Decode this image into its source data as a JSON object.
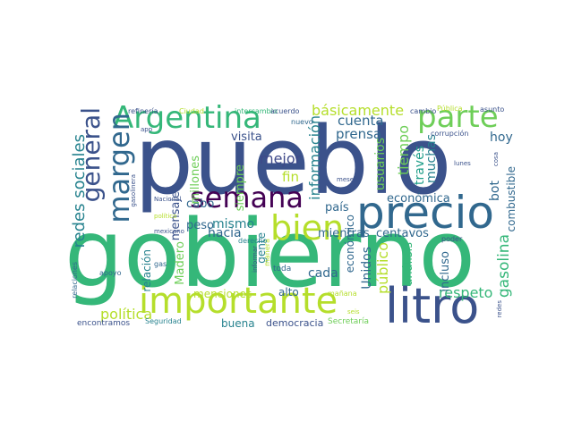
{
  "cloud": {
    "words": [
      {
        "text": "pueblo",
        "color": "#3b528b"
      },
      {
        "text": "gobierno",
        "color": "#35b779"
      },
      {
        "text": "precio",
        "color": "#31688e"
      },
      {
        "text": "litro",
        "color": "#3b528b"
      },
      {
        "text": "importante",
        "color": "#b5de2b"
      },
      {
        "text": "Argentina",
        "color": "#35b779"
      },
      {
        "text": "parte",
        "color": "#6ece58"
      },
      {
        "text": "semana",
        "color": "#440154"
      },
      {
        "text": "bien",
        "color": "#b5de2b"
      },
      {
        "text": "margen",
        "color": "#31688e"
      },
      {
        "text": "general",
        "color": "#3b528b"
      },
      {
        "text": "redes sociales",
        "color": "#26828e"
      },
      {
        "text": "política",
        "color": "#b5de2b"
      },
      {
        "text": "información",
        "color": "#26828e"
      },
      {
        "text": "básicamente",
        "color": "#b5de2b"
      },
      {
        "text": "cuenta",
        "color": "#31688e"
      },
      {
        "text": "prensa",
        "color": "#31688e"
      },
      {
        "text": "mientras",
        "color": "#31688e"
      },
      {
        "text": "centavos",
        "color": "#31688e"
      },
      {
        "text": "gasolina",
        "color": "#35b779"
      },
      {
        "text": "respeto",
        "color": "#35b779"
      },
      {
        "text": "mejor",
        "color": "#3e4989"
      },
      {
        "text": "visita",
        "color": "#3b528b"
      },
      {
        "text": "cabo",
        "color": "#31688e"
      },
      {
        "text": "peso",
        "color": "#31688e"
      },
      {
        "text": "hacia",
        "color": "#31688e"
      },
      {
        "text": "gente",
        "color": "#26828e"
      },
      {
        "text": "Maderо",
        "color": "#6ece58"
      },
      {
        "text": "alto",
        "color": "#31688e"
      },
      {
        "text": "cada",
        "color": "#31688e"
      },
      {
        "text": "Unidos",
        "color": "#31688e"
      },
      {
        "text": "público",
        "color": "#b5de2b"
      },
      {
        "text": "análisis",
        "color": "#35b779"
      },
      {
        "text": "incluso",
        "color": "#31688e"
      },
      {
        "text": "país",
        "color": "#31688e"
      },
      {
        "text": "económico",
        "color": "#31688e"
      },
      {
        "text": "económica",
        "color": "#31688e"
      },
      {
        "text": "tiempo",
        "color": "#6ece58"
      },
      {
        "text": "usuarios",
        "color": "#6ece58"
      },
      {
        "text": "través",
        "color": "#1f9e89"
      },
      {
        "text": "muchas",
        "color": "#26828e"
      },
      {
        "text": "bot",
        "color": "#31688e"
      },
      {
        "text": "combustible",
        "color": "#31688e"
      },
      {
        "text": "hoy",
        "color": "#31688e"
      },
      {
        "text": "fin",
        "color": "#b5de2b"
      },
      {
        "text": "mismo",
        "color": "#26828e"
      },
      {
        "text": "siempre",
        "color": "#6ece58"
      },
      {
        "text": "millones",
        "color": "#6ece58"
      },
      {
        "text": "mensaje",
        "color": "#3b528b"
      },
      {
        "text": "relación",
        "color": "#26828e"
      },
      {
        "text": "menciones",
        "color": "#b5de2b"
      },
      {
        "text": "buena",
        "color": "#26828e"
      },
      {
        "text": "democracia",
        "color": "#3b528b"
      },
      {
        "text": "Secretaría",
        "color": "#6ece58"
      },
      {
        "text": "toda",
        "color": "#31688e"
      },
      {
        "text": "mañana",
        "color": "#b5de2b"
      },
      {
        "text": "seis",
        "color": "#b5de2b"
      },
      {
        "text": "redes",
        "color": "#3b528b"
      },
      {
        "text": "encontramos",
        "color": "#3b528b"
      },
      {
        "text": "Seguridad",
        "color": "#26828e"
      },
      {
        "text": "relaciones",
        "color": "#31688e"
      },
      {
        "text": "apoyo",
        "color": "#31688e"
      },
      {
        "text": "gas",
        "color": "#31688e"
      },
      {
        "text": "informar",
        "color": "#3b528b"
      },
      {
        "text": "manera",
        "color": "#b5de2b"
      },
      {
        "text": "derecho",
        "color": "#26828e"
      },
      {
        "text": "poder",
        "color": "#3b528b"
      },
      {
        "text": "Nacional",
        "color": "#3b528b"
      },
      {
        "text": "político",
        "color": "#b5de2b"
      },
      {
        "text": "mexicano",
        "color": "#3b528b"
      },
      {
        "text": "gasolinera",
        "color": "#3b528b"
      },
      {
        "text": "dar",
        "color": "#3b528b"
      },
      {
        "text": "app",
        "color": "#3b528b"
      },
      {
        "text": "refinería",
        "color": "#3b528b"
      },
      {
        "text": "Ciudad",
        "color": "#b5de2b"
      },
      {
        "text": "intercambio",
        "color": "#35b779"
      },
      {
        "text": "acuerdo",
        "color": "#3b528b"
      },
      {
        "text": "nuevo",
        "color": "#31688e"
      },
      {
        "text": "cambio",
        "color": "#3b528b"
      },
      {
        "text": "Pública",
        "color": "#b5de2b"
      },
      {
        "text": "asunto",
        "color": "#3b528b"
      },
      {
        "text": "corrupción",
        "color": "#3b528b"
      },
      {
        "text": "lunes",
        "color": "#3b528b"
      },
      {
        "text": "cosa",
        "color": "#3b528b"
      },
      {
        "text": "meses",
        "color": "#3b528b"
      }
    ]
  }
}
